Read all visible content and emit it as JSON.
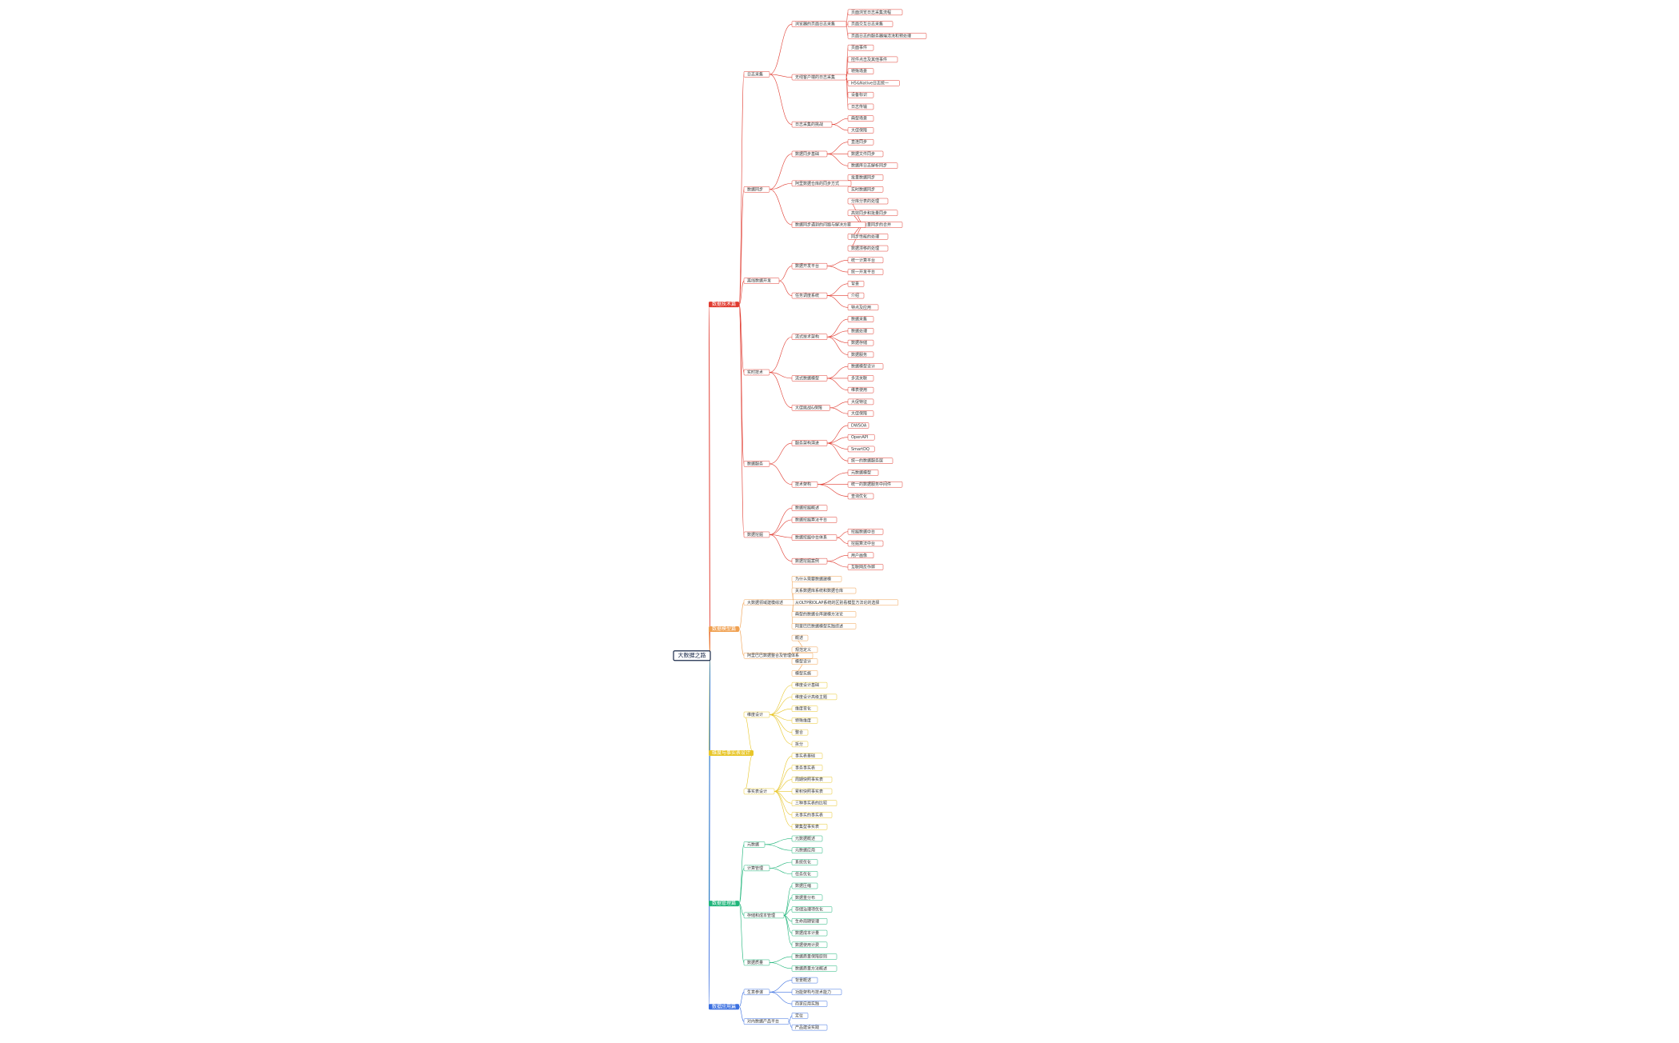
{
  "root": {
    "label": "大数据之路",
    "children": [
      {
        "label": "数据技术篇",
        "color": "#e03a2f",
        "children": [
          {
            "label": "日志采集",
            "children": [
              {
                "label": "浏览器的页面日志采集",
                "children": [
                  "页面浏览日志采集流程",
                  "页面交互日志采集",
                  "页面日志的服务器端清洗和预处理"
                ]
              },
              {
                "label": "无线客户端的日志采集",
                "children": [
                  "页面事件",
                  "控件点击及其他事件",
                  "特殊场景",
                  "H5&Native日志统一",
                  "设备标识",
                  "日志传输"
                ]
              },
              {
                "label": "日志采集的挑战",
                "children": [
                  "典型场景",
                  "大促保障"
                ]
              }
            ]
          },
          {
            "label": "数据同步",
            "children": [
              {
                "label": "数据同步基础",
                "children": [
                  "直连同步",
                  "数据文件同步",
                  "数据库日志解析同步"
                ]
              },
              {
                "label": "阿里数据仓库的同步方式",
                "children": [
                  "批量数据同步",
                  "实时数据同步"
                ]
              },
              {
                "label": "数据同步遇到的问题与解决方案",
                "children": [
                  "分库分表的处理",
                  "高效同步和批量同步",
                  "增量与全量同步的合并",
                  "同步性能的处理",
                  "数据漂移的处理"
                ]
              }
            ]
          },
          {
            "label": "离线数据开发",
            "children": [
              {
                "label": "数据开发平台",
                "children": [
                  "统一计算平台",
                  "统一开发平台"
                ]
              },
              {
                "label": "任务调度系统",
                "children": [
                  "背景",
                  "介绍",
                  "特点及应用"
                ]
              }
            ]
          },
          {
            "label": "实时技术",
            "children": [
              {
                "label": "流式技术架构",
                "children": [
                  "数据采集",
                  "数据处理",
                  "数据存储",
                  "数据服务"
                ]
              },
              {
                "label": "流式数据模型",
                "children": [
                  "数据模型设计",
                  "多流关联",
                  "维表使用"
                ]
              },
              {
                "label": "大促挑战&保障",
                "children": [
                  "大促特征",
                  "大促保障"
                ]
              }
            ]
          },
          {
            "label": "数据服务",
            "children": [
              {
                "label": "服务架构演进",
                "children": [
                  "DWSOA",
                  "OpenAPI",
                  "SmartDQ",
                  "统一的数据服务层"
                ]
              },
              {
                "label": "技术架构",
                "children": [
                  "元数据模型",
                  "统一的数据服务中间件",
                  "查询优化"
                ]
              }
            ]
          },
          {
            "label": "数据挖掘",
            "children": [
              "数据挖掘概述",
              "数据挖掘算法平台",
              {
                "label": "数据挖掘中台体系",
                "children": [
                  "挖掘数据中台",
                  "挖掘算法中台"
                ]
              },
              {
                "label": "数据挖掘案例",
                "children": [
                  "用户画像",
                  "互联网反作弊"
                ]
              }
            ]
          }
        ]
      },
      {
        "label": "数据模型篇",
        "color": "#f0a050",
        "children": [
          {
            "label": "大数据领域建模综述",
            "children": [
              "为什么需要数据建模",
              "关系数据库系统和数据仓库",
              "从OLTP和OLAP系统的区别看模型方法论的选择",
              "典型的数据仓库建模方法论",
              "阿里巴巴数据模型实践综述"
            ]
          },
          {
            "label": "阿里巴巴数据整合及管理体系",
            "children": [
              "概述",
              "规范定义",
              "模型设计",
              "模型实施"
            ]
          }
        ]
      },
      {
        "label": "维度与事实表设计",
        "color": "#e8c62a",
        "children": [
          {
            "label": "维度设计",
            "children": [
              "维度设计基础",
              "维度设计高级主题",
              "维度变化",
              "特殊维度",
              "整合",
              "拆分"
            ]
          },
          {
            "label": "事实表设计",
            "children": [
              "事实表基础",
              "事务事实表",
              "周期快照事实表",
              "累积快照事实表",
              "三种事实表的比较",
              "无事实的事实表",
              "聚集型事实表"
            ]
          }
        ]
      },
      {
        "label": "数据管理篇",
        "color": "#1fb57a",
        "children": [
          {
            "label": "元数据",
            "children": [
              "元数据概述",
              "元数据应用"
            ]
          },
          {
            "label": "计算管理",
            "children": [
              "系统优化",
              "任务优化"
            ]
          },
          {
            "label": "存储和成本管理",
            "children": [
              "数据压缩",
              "数据重分布",
              "存储治理项优化",
              "生命周期管理",
              "数据成本计量",
              "数据使用计费"
            ]
          },
          {
            "label": "数据质量",
            "children": [
              "数据质量保障原则",
              "数据质量方法概述"
            ]
          }
        ]
      },
      {
        "label": "数据应用篇",
        "color": "#3a6fe0",
        "children": [
          {
            "label": "生意参谋",
            "children": [
              "背景概述",
              "功能架构与技术能力",
              "商家应用实践"
            ]
          },
          {
            "label": "对内数据产品平台",
            "children": [
              "定位",
              "产品建设实践"
            ]
          }
        ]
      }
    ]
  }
}
